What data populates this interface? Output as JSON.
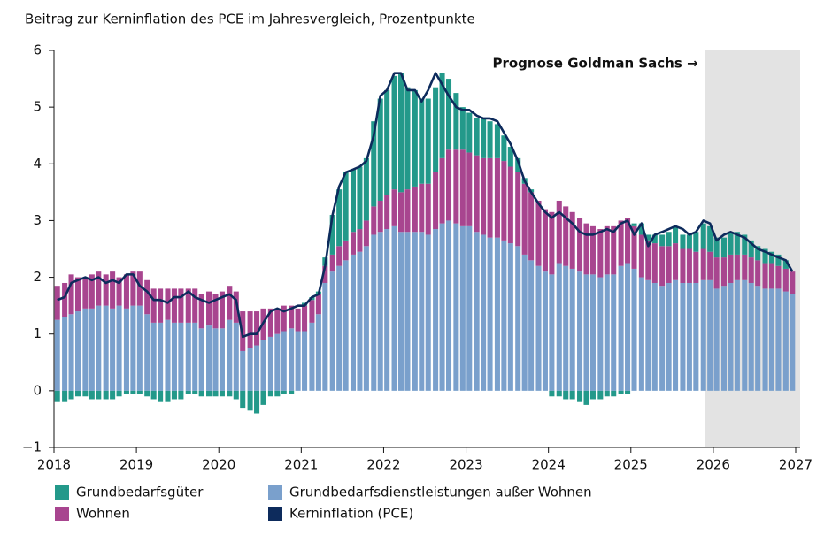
{
  "chart_data": {
    "type": "bar",
    "stacked": true,
    "title": "Beitrag zur Kerninflation des PCE im Jahresvergleich, Prozentpunkte",
    "annotation": {
      "text": "Prognose Goldman Sachs →",
      "shade": [
        2025.9,
        2027
      ]
    },
    "xlim": [
      2018,
      2027
    ],
    "xticks": [
      2018,
      2019,
      2020,
      2021,
      2022,
      2023,
      2024,
      2025,
      2026,
      2027
    ],
    "ylim": [
      -1,
      6
    ],
    "yticks": [
      {
        "value": -1,
        "label": "−1"
      },
      0,
      1,
      2,
      3,
      4,
      5,
      6
    ],
    "x": [
      2018.04,
      2018.13,
      2018.21,
      2018.29,
      2018.38,
      2018.46,
      2018.54,
      2018.63,
      2018.71,
      2018.79,
      2018.88,
      2018.96,
      2019.04,
      2019.13,
      2019.21,
      2019.29,
      2019.38,
      2019.46,
      2019.54,
      2019.63,
      2019.71,
      2019.79,
      2019.88,
      2019.96,
      2020.04,
      2020.13,
      2020.21,
      2020.29,
      2020.38,
      2020.46,
      2020.54,
      2020.63,
      2020.71,
      2020.79,
      2020.88,
      2020.96,
      2021.04,
      2021.13,
      2021.21,
      2021.29,
      2021.38,
      2021.46,
      2021.54,
      2021.63,
      2021.71,
      2021.79,
      2021.88,
      2021.96,
      2022.04,
      2022.13,
      2022.21,
      2022.29,
      2022.38,
      2022.46,
      2022.54,
      2022.63,
      2022.71,
      2022.79,
      2022.88,
      2022.96,
      2023.04,
      2023.13,
      2023.21,
      2023.29,
      2023.38,
      2023.46,
      2023.54,
      2023.63,
      2023.71,
      2023.79,
      2023.88,
      2023.96,
      2024.04,
      2024.13,
      2024.21,
      2024.29,
      2024.38,
      2024.46,
      2024.54,
      2024.63,
      2024.71,
      2024.79,
      2024.88,
      2024.96,
      2025.04,
      2025.13,
      2025.21,
      2025.29,
      2025.38,
      2025.46,
      2025.54,
      2025.63,
      2025.71,
      2025.79,
      2025.88,
      2025.96,
      2026.04,
      2026.13,
      2026.21,
      2026.29,
      2026.38,
      2026.46,
      2026.54,
      2026.63,
      2026.71,
      2026.79,
      2026.88,
      2026.96
    ],
    "series": [
      {
        "name": "Grundbedarfsgüter",
        "color": "#23998a",
        "values": [
          -0.2,
          -0.2,
          -0.15,
          -0.1,
          -0.1,
          -0.15,
          -0.15,
          -0.15,
          -0.15,
          -0.1,
          -0.05,
          -0.05,
          -0.05,
          -0.1,
          -0.15,
          -0.2,
          -0.2,
          -0.15,
          -0.15,
          -0.05,
          -0.05,
          -0.1,
          -0.1,
          -0.1,
          -0.1,
          -0.1,
          -0.15,
          -0.3,
          -0.35,
          -0.4,
          -0.25,
          -0.1,
          -0.1,
          -0.05,
          -0.05,
          0,
          0.05,
          0.05,
          0.05,
          0.15,
          0.7,
          1.0,
          1.2,
          1.1,
          1.1,
          1.1,
          1.5,
          1.8,
          1.85,
          2.0,
          2.1,
          1.8,
          1.7,
          1.5,
          1.5,
          1.5,
          1.5,
          1.25,
          1.0,
          0.75,
          0.7,
          0.65,
          0.7,
          0.65,
          0.6,
          0.45,
          0.35,
          0.25,
          0.1,
          0.05,
          0,
          0,
          -0.1,
          -0.1,
          -0.15,
          -0.15,
          -0.2,
          -0.25,
          -0.15,
          -0.15,
          -0.1,
          -0.1,
          -0.05,
          -0.05,
          0.05,
          0.2,
          0.1,
          0.15,
          0.2,
          0.25,
          0.3,
          0.25,
          0.25,
          0.35,
          0.45,
          0.45,
          0.35,
          0.35,
          0.4,
          0.4,
          0.35,
          0.3,
          0.25,
          0.25,
          0.2,
          0.2,
          0.15,
          0
        ]
      },
      {
        "name": "Grundbedarfsdienstleistungen außer Wohnen",
        "color": "#7aa0cc",
        "values": [
          1.25,
          1.3,
          1.35,
          1.4,
          1.45,
          1.45,
          1.5,
          1.5,
          1.45,
          1.5,
          1.45,
          1.5,
          1.5,
          1.35,
          1.2,
          1.2,
          1.25,
          1.2,
          1.2,
          1.2,
          1.2,
          1.1,
          1.15,
          1.1,
          1.1,
          1.25,
          1.2,
          0.7,
          0.75,
          0.8,
          0.9,
          0.95,
          1.0,
          1.05,
          1.1,
          1.05,
          1.05,
          1.2,
          1.35,
          1.9,
          2.1,
          2.2,
          2.3,
          2.4,
          2.45,
          2.55,
          2.75,
          2.8,
          2.85,
          2.9,
          2.8,
          2.8,
          2.8,
          2.8,
          2.75,
          2.85,
          2.95,
          3.0,
          2.95,
          2.9,
          2.9,
          2.8,
          2.75,
          2.7,
          2.7,
          2.65,
          2.6,
          2.55,
          2.4,
          2.3,
          2.2,
          2.1,
          2.05,
          2.25,
          2.2,
          2.15,
          2.1,
          2.05,
          2.05,
          2.0,
          2.05,
          2.05,
          2.2,
          2.25,
          2.15,
          2.0,
          1.95,
          1.9,
          1.85,
          1.9,
          1.95,
          1.9,
          1.9,
          1.9,
          1.95,
          1.95,
          1.8,
          1.85,
          1.9,
          1.95,
          1.95,
          1.9,
          1.85,
          1.8,
          1.8,
          1.8,
          1.75,
          1.7
        ]
      },
      {
        "name": "Wohnen",
        "color": "#a8458f",
        "values": [
          0.6,
          0.6,
          0.7,
          0.6,
          0.55,
          0.6,
          0.6,
          0.55,
          0.65,
          0.5,
          0.6,
          0.6,
          0.6,
          0.6,
          0.6,
          0.6,
          0.55,
          0.6,
          0.6,
          0.6,
          0.6,
          0.6,
          0.6,
          0.6,
          0.65,
          0.6,
          0.55,
          0.7,
          0.65,
          0.6,
          0.55,
          0.5,
          0.45,
          0.45,
          0.4,
          0.4,
          0.45,
          0.4,
          0.35,
          0.3,
          0.3,
          0.35,
          0.35,
          0.4,
          0.4,
          0.45,
          0.5,
          0.55,
          0.6,
          0.65,
          0.7,
          0.75,
          0.8,
          0.85,
          0.9,
          1.0,
          1.15,
          1.25,
          1.3,
          1.35,
          1.3,
          1.35,
          1.35,
          1.4,
          1.4,
          1.4,
          1.35,
          1.3,
          1.25,
          1.2,
          1.15,
          1.1,
          1.1,
          1.1,
          1.05,
          1.0,
          0.95,
          0.9,
          0.85,
          0.85,
          0.85,
          0.85,
          0.8,
          0.8,
          0.75,
          0.75,
          0.7,
          0.7,
          0.7,
          0.65,
          0.65,
          0.6,
          0.6,
          0.55,
          0.55,
          0.5,
          0.55,
          0.5,
          0.5,
          0.45,
          0.45,
          0.45,
          0.45,
          0.45,
          0.45,
          0.4,
          0.4,
          0.4
        ]
      },
      {
        "name": "Kerninflation (PCE)",
        "color": "#0d2b5c",
        "type": "line",
        "values": [
          1.6,
          1.65,
          1.9,
          1.95,
          2.0,
          1.95,
          2.0,
          1.9,
          1.95,
          1.9,
          2.05,
          2.05,
          1.85,
          1.75,
          1.6,
          1.6,
          1.55,
          1.65,
          1.65,
          1.75,
          1.65,
          1.6,
          1.55,
          1.6,
          1.65,
          1.7,
          1.6,
          0.95,
          1.0,
          1.0,
          1.2,
          1.4,
          1.45,
          1.4,
          1.45,
          1.5,
          1.5,
          1.65,
          1.7,
          2.2,
          3.1,
          3.6,
          3.85,
          3.9,
          3.95,
          4.05,
          4.5,
          5.2,
          5.3,
          5.6,
          5.6,
          5.3,
          5.3,
          5.1,
          5.3,
          5.6,
          5.4,
          5.2,
          5.0,
          4.95,
          4.95,
          4.85,
          4.8,
          4.8,
          4.75,
          4.55,
          4.35,
          4.05,
          3.7,
          3.5,
          3.3,
          3.15,
          3.05,
          3.15,
          3.05,
          2.95,
          2.8,
          2.75,
          2.75,
          2.8,
          2.85,
          2.8,
          2.95,
          3.0,
          2.75,
          2.95,
          2.55,
          2.75,
          2.8,
          2.85,
          2.9,
          2.85,
          2.75,
          2.8,
          3.0,
          2.95,
          2.65,
          2.75,
          2.8,
          2.75,
          2.7,
          2.6,
          2.5,
          2.45,
          2.4,
          2.35,
          2.3,
          2.1
        ]
      }
    ]
  }
}
